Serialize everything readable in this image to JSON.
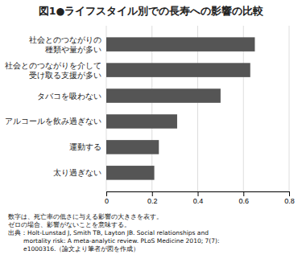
{
  "chart_data": {
    "type": "bar",
    "orientation": "horizontal",
    "title": "図1●ライフスタイル別での長寿への影響の比較",
    "categories": [
      "太り過ぎない",
      "運動する",
      "アルコールを飲み過ぎない",
      "タバコを吸わない",
      "社会とのつながりを介して\n受け取る支援が多い",
      "社会とのつながりの\n種類や量が多い"
    ],
    "values": [
      0.21,
      0.23,
      0.31,
      0.5,
      0.63,
      0.65
    ],
    "color": "#555555",
    "xlim": [
      0,
      0.8
    ],
    "xticks": [
      0,
      0.2,
      0.4,
      0.6,
      0.8
    ],
    "grid": true,
    "annotations": [
      "数字は、死亡率の低さに与える影響の大きさを表す。",
      "ゼロの場合、影響がないことを意味する。",
      "出典：Holt-Lunstad J, Smith TB, Layton JB. Social relationships and",
      "        mortality risk: A meta-analytic review. PLoS Medicine 2010; 7(7):",
      "        e1000316.（論文より筆者が図を作成）"
    ]
  }
}
